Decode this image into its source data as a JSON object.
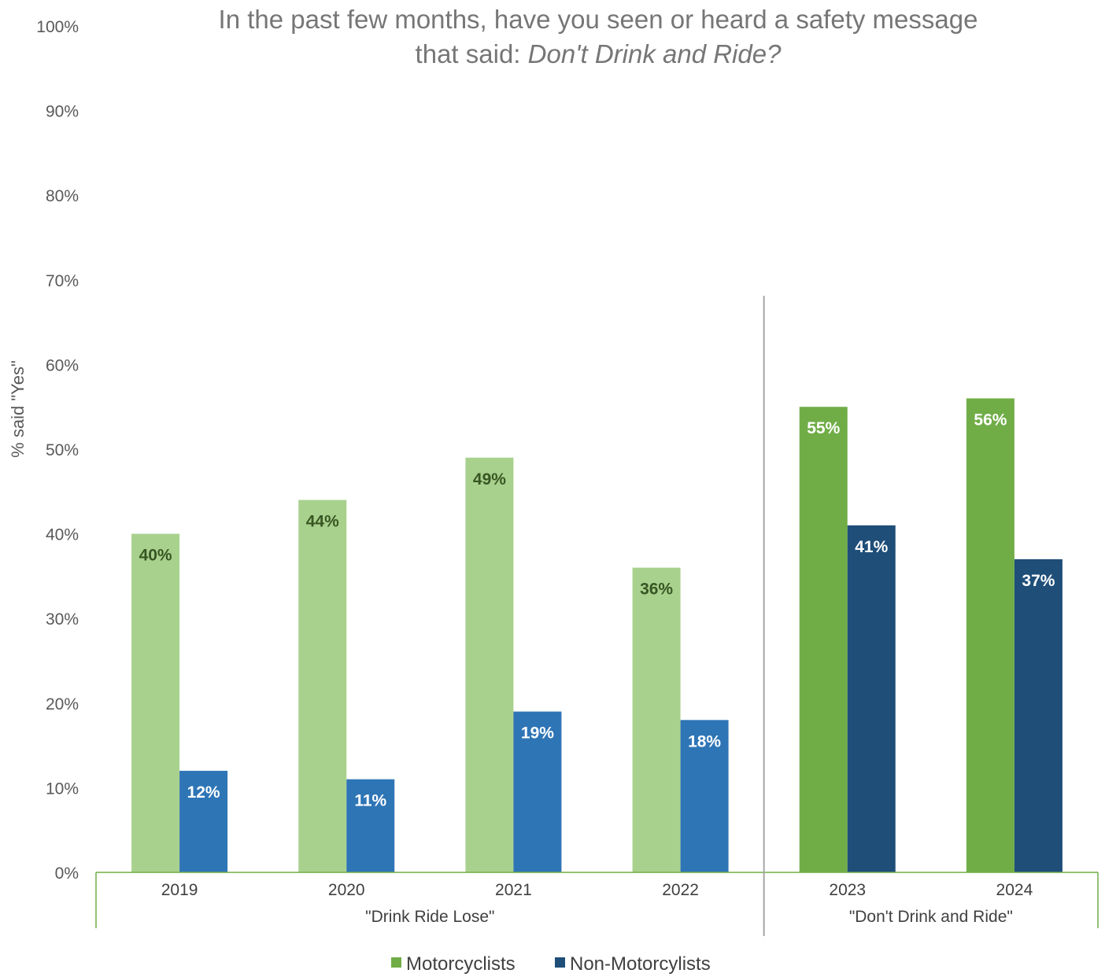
{
  "chart_data": {
    "type": "bar",
    "title_line1": "In the past few months, have you seen or heard a safety message",
    "title_line2_prefix": "that said: ",
    "title_line2_italic": "Don't Drink and Ride?",
    "ylabel": "% said \"Yes\"",
    "ylim": [
      0,
      100
    ],
    "yticks": [
      "0%",
      "10%",
      "20%",
      "30%",
      "40%",
      "50%",
      "60%",
      "70%",
      "80%",
      "90%",
      "100%"
    ],
    "categories": [
      "2019",
      "2020",
      "2021",
      "2022",
      "2023",
      "2024"
    ],
    "groups": [
      {
        "label": "\"Drink Ride Lose\"",
        "categories": [
          "2019",
          "2020",
          "2021",
          "2022"
        ]
      },
      {
        "label": "\"Don't Drink and Ride\"",
        "categories": [
          "2023",
          "2024"
        ]
      }
    ],
    "series": [
      {
        "name": "Motorcyclists",
        "values": [
          40,
          44,
          49,
          36,
          55,
          56
        ],
        "labels": [
          "40%",
          "44%",
          "49%",
          "36%",
          "55%",
          "56%"
        ],
        "colors": [
          "#a9d18e",
          "#a9d18e",
          "#a9d18e",
          "#a9d18e",
          "#70ad47",
          "#70ad47"
        ],
        "label_colors": [
          "#375623",
          "#375623",
          "#375623",
          "#375623",
          "#ffffff",
          "#ffffff"
        ],
        "legend_color": "#70ad47"
      },
      {
        "name": "Non-Motorcylists",
        "values": [
          12,
          11,
          19,
          18,
          41,
          37
        ],
        "labels": [
          "12%",
          "11%",
          "19%",
          "18%",
          "41%",
          "37%"
        ],
        "colors": [
          "#2e75b6",
          "#2e75b6",
          "#2e75b6",
          "#2e75b6",
          "#1f4e79",
          "#1f4e79"
        ],
        "label_colors": [
          "#ffffff",
          "#ffffff",
          "#ffffff",
          "#ffffff",
          "#ffffff",
          "#ffffff"
        ],
        "legend_color": "#1f4e79"
      }
    ],
    "grid": false,
    "legend_position": "bottom",
    "axis_line_color": "#70ad47",
    "separator_color": "#a6a6a6"
  }
}
